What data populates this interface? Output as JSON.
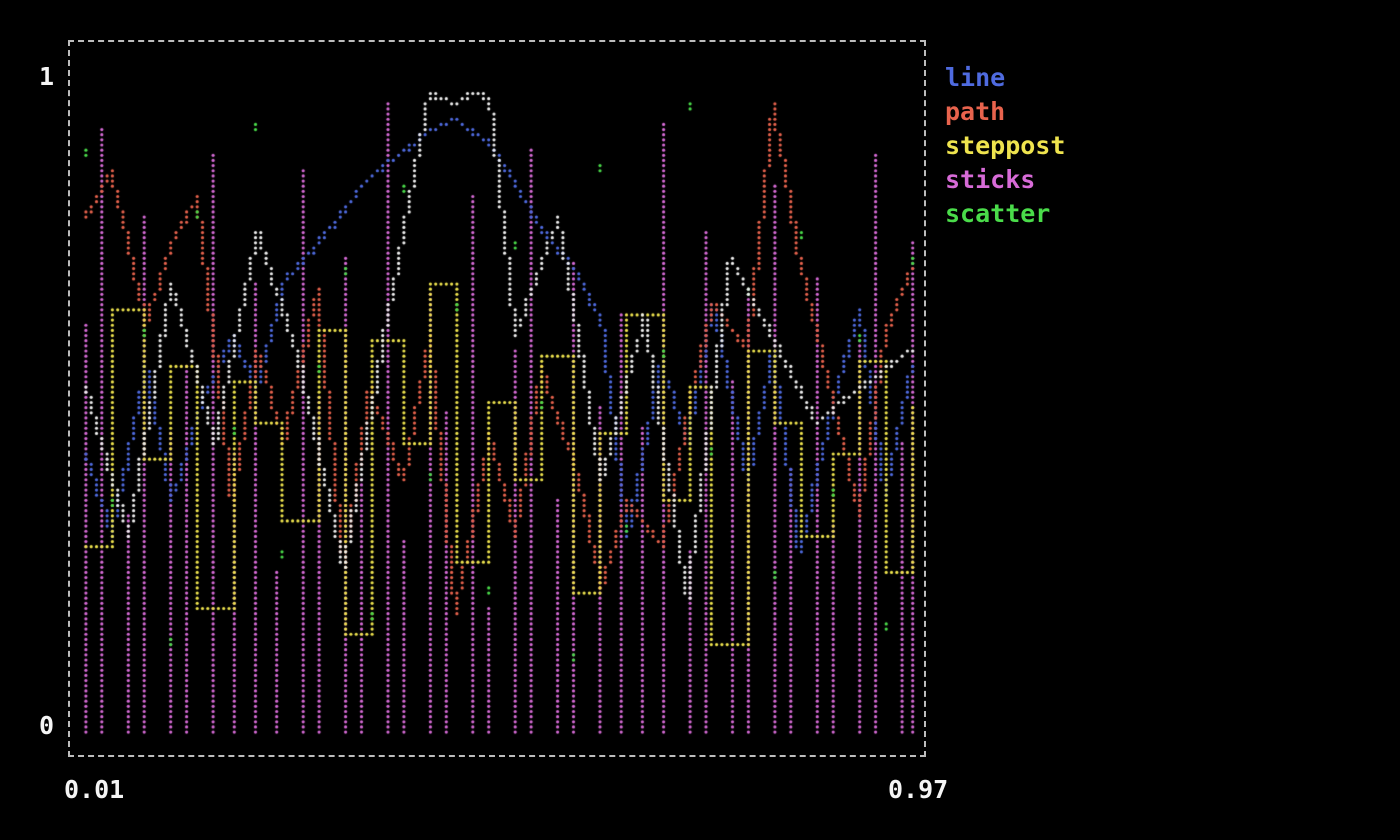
{
  "axis": {
    "y_top": "1",
    "y_bottom": "0",
    "x_left": "0.01",
    "x_right": "0.97"
  },
  "colors": {
    "background": "#000000",
    "border": "#bcbcbc",
    "tick_text": "#f5f5f5"
  },
  "chart_data": {
    "type": "mixed",
    "style": "terminal-braille-dots",
    "background": "#000000",
    "xlim": [
      0.01,
      0.97
    ],
    "ylim": [
      0,
      1
    ],
    "x_ticks": [
      "0.01",
      "0.97"
    ],
    "y_ticks": [
      "0",
      "1"
    ],
    "grid": false,
    "legend_position": "right-top",
    "series": [
      {
        "name": "line",
        "type": "line",
        "color": "#4f6be0",
        "x": [
          0.01,
          0.04,
          0.08,
          0.11,
          0.14,
          0.18,
          0.21,
          0.24,
          0.28,
          0.31,
          0.34,
          0.38,
          0.41,
          0.44,
          0.48,
          0.51,
          0.54,
          0.58,
          0.61,
          0.64,
          0.68,
          0.71,
          0.74,
          0.78,
          0.81,
          0.84,
          0.88,
          0.91,
          0.94,
          0.97
        ],
        "y": [
          0.42,
          0.3,
          0.55,
          0.35,
          0.48,
          0.6,
          0.52,
          0.68,
          0.74,
          0.79,
          0.84,
          0.88,
          0.91,
          0.93,
          0.89,
          0.83,
          0.76,
          0.7,
          0.62,
          0.3,
          0.56,
          0.44,
          0.65,
          0.38,
          0.58,
          0.27,
          0.5,
          0.64,
          0.36,
          0.55
        ]
      },
      {
        "name": "path",
        "type": "path",
        "color": "#e8634d",
        "x": [
          0.01,
          0.04,
          0.08,
          0.11,
          0.14,
          0.18,
          0.21,
          0.24,
          0.28,
          0.31,
          0.34,
          0.38,
          0.41,
          0.44,
          0.48,
          0.51,
          0.54,
          0.58,
          0.61,
          0.64,
          0.68,
          0.71,
          0.74,
          0.78,
          0.81,
          0.84,
          0.88,
          0.91,
          0.94,
          0.97
        ],
        "y": [
          0.78,
          0.85,
          0.62,
          0.74,
          0.81,
          0.35,
          0.58,
          0.44,
          0.67,
          0.25,
          0.52,
          0.38,
          0.6,
          0.18,
          0.45,
          0.3,
          0.55,
          0.4,
          0.22,
          0.35,
          0.28,
          0.48,
          0.65,
          0.58,
          0.95,
          0.72,
          0.5,
          0.33,
          0.6,
          0.7
        ]
      },
      {
        "name": "steppost",
        "type": "steppost",
        "color": "#efe44e",
        "x": [
          0.01,
          0.04,
          0.08,
          0.11,
          0.14,
          0.18,
          0.21,
          0.24,
          0.28,
          0.31,
          0.34,
          0.38,
          0.41,
          0.44,
          0.48,
          0.51,
          0.54,
          0.58,
          0.61,
          0.64,
          0.68,
          0.71,
          0.74,
          0.78,
          0.81,
          0.84,
          0.88,
          0.91,
          0.94,
          0.97
        ],
        "y": [
          0.28,
          0.64,
          0.41,
          0.55,
          0.19,
          0.53,
          0.47,
          0.32,
          0.61,
          0.15,
          0.59,
          0.44,
          0.68,
          0.26,
          0.5,
          0.38,
          0.57,
          0.21,
          0.45,
          0.63,
          0.35,
          0.52,
          0.13,
          0.58,
          0.47,
          0.3,
          0.42,
          0.56,
          0.24,
          0.49
        ]
      },
      {
        "name": "sticks",
        "type": "sticks",
        "color": "#d76bd7",
        "x": [
          0.01,
          0.03,
          0.06,
          0.08,
          0.11,
          0.13,
          0.16,
          0.18,
          0.21,
          0.23,
          0.26,
          0.28,
          0.31,
          0.33,
          0.36,
          0.38,
          0.41,
          0.43,
          0.46,
          0.48,
          0.51,
          0.53,
          0.56,
          0.58,
          0.61,
          0.63,
          0.66,
          0.68,
          0.71,
          0.73,
          0.76,
          0.78,
          0.81,
          0.83,
          0.86,
          0.88,
          0.91,
          0.93,
          0.96,
          0.97
        ],
        "y": [
          0.62,
          0.91,
          0.33,
          0.78,
          0.45,
          0.55,
          0.87,
          0.42,
          0.68,
          0.24,
          0.85,
          0.51,
          0.72,
          0.38,
          0.95,
          0.29,
          0.66,
          0.48,
          0.81,
          0.19,
          0.58,
          0.88,
          0.35,
          0.71,
          0.49,
          0.63,
          0.46,
          0.92,
          0.27,
          0.76,
          0.53,
          0.67,
          0.83,
          0.4,
          0.69,
          0.31,
          0.59,
          0.87,
          0.44,
          0.74
        ]
      },
      {
        "name": "scatter",
        "type": "scatter",
        "color": "#4adc4a",
        "x": [
          0.01,
          0.04,
          0.08,
          0.11,
          0.14,
          0.18,
          0.21,
          0.24,
          0.28,
          0.31,
          0.34,
          0.38,
          0.41,
          0.44,
          0.48,
          0.51,
          0.54,
          0.58,
          0.61,
          0.64,
          0.68,
          0.71,
          0.74,
          0.78,
          0.81,
          0.84,
          0.88,
          0.91,
          0.94,
          0.97
        ],
        "y": [
          0.88,
          0.35,
          0.61,
          0.14,
          0.79,
          0.46,
          0.92,
          0.27,
          0.55,
          0.7,
          0.18,
          0.83,
          0.39,
          0.65,
          0.22,
          0.74,
          0.5,
          0.12,
          0.86,
          0.31,
          0.58,
          0.95,
          0.43,
          0.67,
          0.24,
          0.76,
          0.37,
          0.6,
          0.16,
          0.72
        ]
      },
      {
        "name": "",
        "type": "path",
        "color": "#f0f0f0",
        "x": [
          0.01,
          0.06,
          0.11,
          0.16,
          0.21,
          0.26,
          0.31,
          0.36,
          0.41,
          0.44,
          0.46,
          0.48,
          0.51,
          0.56,
          0.61,
          0.66,
          0.71,
          0.76,
          0.86,
          0.97
        ],
        "y": [
          0.52,
          0.3,
          0.68,
          0.44,
          0.76,
          0.55,
          0.25,
          0.62,
          0.97,
          0.95,
          0.97,
          0.96,
          0.6,
          0.78,
          0.38,
          0.63,
          0.2,
          0.72,
          0.47,
          0.58
        ]
      }
    ]
  }
}
